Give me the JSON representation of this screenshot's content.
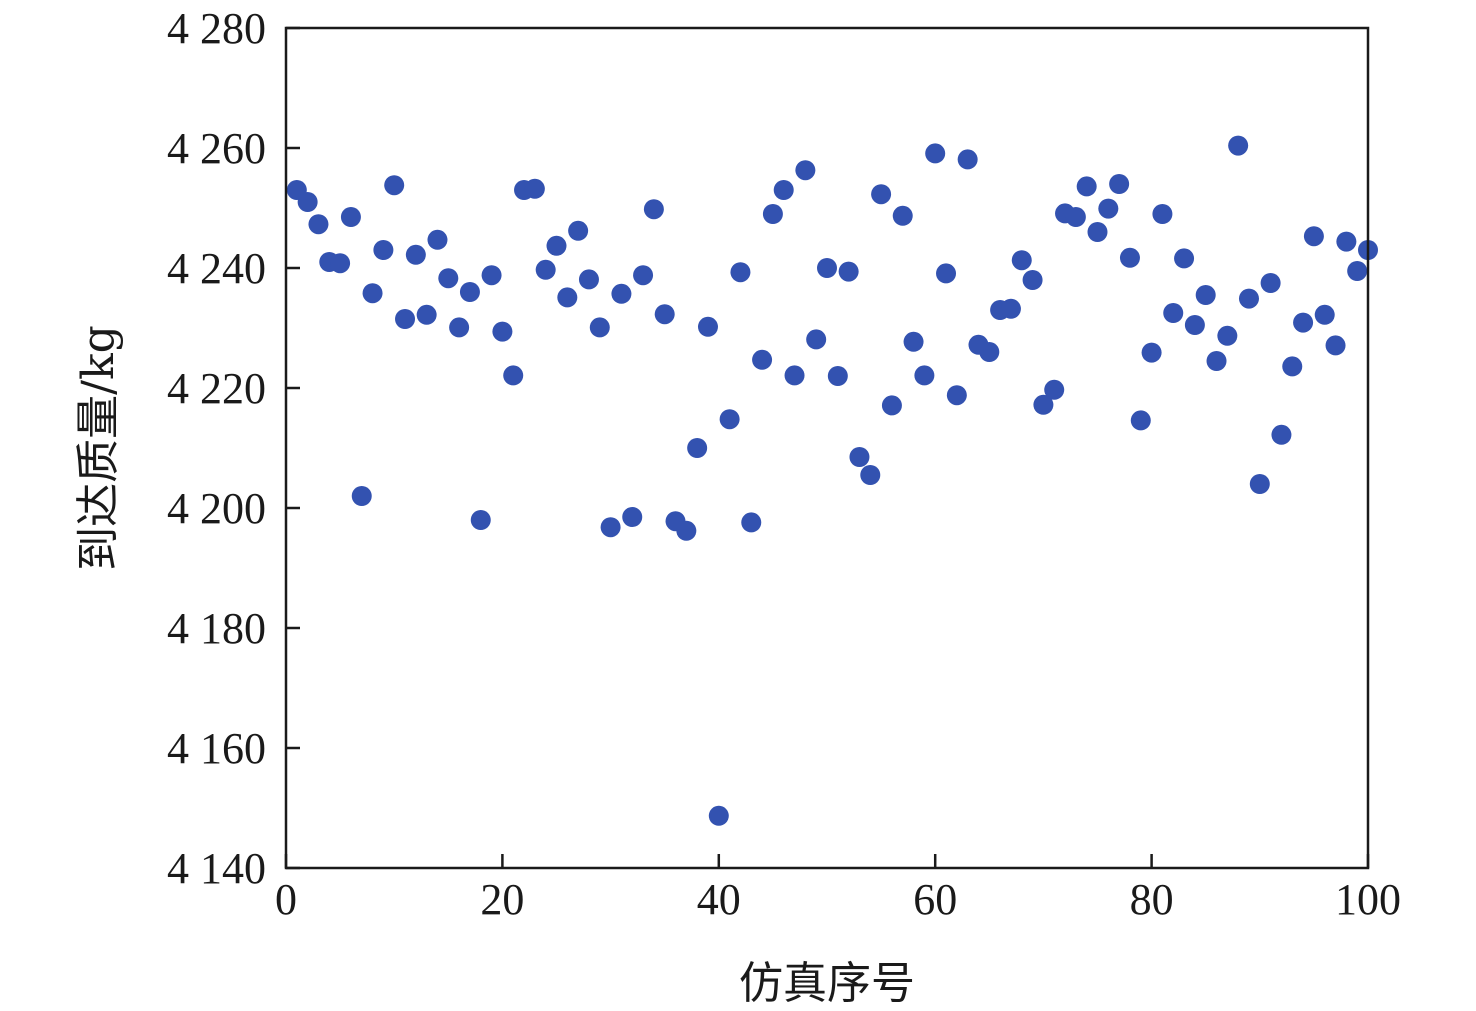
{
  "chart_data": {
    "type": "scatter",
    "title": "",
    "xlabel": "仿真序号",
    "ylabel": "到达质量/kg",
    "xlim": [
      0,
      100
    ],
    "ylim": [
      4140,
      4280
    ],
    "x_ticks": [
      0,
      20,
      40,
      60,
      80,
      100
    ],
    "x_tick_labels": [
      "0",
      "20",
      "40",
      "60",
      "80",
      "100"
    ],
    "y_ticks": [
      4140,
      4160,
      4180,
      4200,
      4220,
      4240,
      4260,
      4280
    ],
    "y_tick_labels": [
      "4 140",
      "4 160",
      "4 180",
      "4 200",
      "4 220",
      "4 240",
      "4 260",
      "4 280"
    ],
    "grid": false,
    "marker_color": "#3352b0",
    "series": [
      {
        "x": [
          1,
          2,
          3,
          4,
          5,
          6,
          7,
          8,
          9,
          10,
          11,
          12,
          13,
          14,
          15,
          16,
          17,
          18,
          19,
          20,
          21,
          22,
          23,
          24,
          25,
          26,
          27,
          28,
          29,
          30,
          31,
          32,
          33,
          34,
          35,
          36,
          37,
          38,
          39,
          40,
          41,
          42,
          43,
          44,
          45,
          46,
          47,
          48,
          49,
          50,
          51,
          52,
          53,
          54,
          55,
          56,
          57,
          58,
          59,
          60,
          61,
          62,
          63,
          64,
          65,
          66,
          67,
          68,
          69,
          70,
          71,
          72,
          73,
          74,
          75,
          76,
          77,
          78,
          79,
          80,
          81,
          82,
          83,
          84,
          85,
          86,
          87,
          88,
          89,
          90,
          91,
          92,
          93,
          94,
          95,
          96,
          97,
          98,
          99,
          100
        ],
        "y": [
          4253,
          4251,
          4247.3,
          4241,
          4240.8,
          4248.5,
          4202,
          4235.8,
          4243,
          4253.8,
          4231.5,
          4242.2,
          4232.2,
          4244.7,
          4238.3,
          4230.1,
          4236,
          4198,
          4238.8,
          4229.4,
          4222.1,
          4253,
          4253.2,
          4239.7,
          4243.7,
          4235.1,
          4246.2,
          4238.1,
          4230.1,
          4196.8,
          4235.7,
          4198.5,
          4238.8,
          4249.8,
          4232.3,
          4197.8,
          4196.2,
          4210,
          4230.2,
          4148.7,
          4214.8,
          4239.3,
          4197.6,
          4224.7,
          4249,
          4253,
          4222.1,
          4256.3,
          4228.1,
          4240,
          4222,
          4239.4,
          4208.5,
          4205.5,
          4252.3,
          4217.1,
          4248.7,
          4227.7,
          4222.1,
          4259.1,
          4239.1,
          4218.8,
          4258.1,
          4227.2,
          4226,
          4233,
          4233.2,
          4241.3,
          4238,
          4217.2,
          4219.7,
          4249.1,
          4248.5,
          4253.6,
          4246,
          4249.9,
          4254,
          4241.7,
          4214.6,
          4225.9,
          4249,
          4232.5,
          4241.6,
          4230.5,
          4235.5,
          4224.5,
          4228.7,
          4260.4,
          4234.9,
          4204,
          4237.5,
          4212.2,
          4223.6,
          4230.9,
          4245.3,
          4232.2,
          4227.1,
          4244.4,
          4239.5,
          4243
        ]
      }
    ]
  }
}
